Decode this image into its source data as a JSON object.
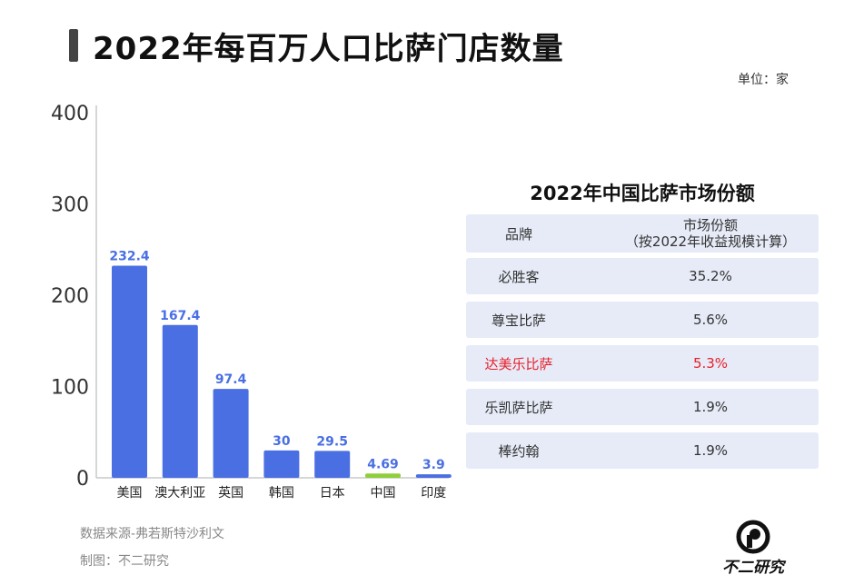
{
  "title": "2022年每百万人口比萨门店数量",
  "unit": "单位：家",
  "chart_data": {
    "type": "bar",
    "categories": [
      "美国",
      "澳大利亚",
      "英国",
      "韩国",
      "日本",
      "中国",
      "印度"
    ],
    "values": [
      232.4,
      167.4,
      97.4,
      30,
      29.5,
      4.69,
      3.9
    ],
    "value_labels": [
      "232.4",
      "167.4",
      "97.4",
      "30",
      "29.5",
      "4.69",
      "3.9"
    ],
    "highlight_category": "中国",
    "bar_color": "#4a6fe3",
    "highlight_color": "#8fcf3c",
    "label_color": "#4a6fe3",
    "ylim": [
      0,
      400
    ],
    "yticks": [
      0,
      100,
      200,
      300,
      400
    ],
    "grid": false
  },
  "table": {
    "title": "2022年中国比萨市场份额",
    "header": {
      "brand": "品牌",
      "share_line1": "市场份额",
      "share_line2": "（按2022年收益规模计算）"
    },
    "rows": [
      {
        "brand": "必胜客",
        "share": "35.2%",
        "highlight": false
      },
      {
        "brand": "尊宝比萨",
        "share": "5.6%",
        "highlight": false
      },
      {
        "brand": "达美乐比萨",
        "share": "5.3%",
        "highlight": true
      },
      {
        "brand": "乐凯萨比萨",
        "share": "1.9%",
        "highlight": false
      },
      {
        "brand": "棒约翰",
        "share": "1.9%",
        "highlight": false
      }
    ],
    "highlight_color": "#e8202a",
    "row_color": "#e6ebf7"
  },
  "footer": {
    "source": "数据来源-弗若斯特沙利文",
    "maker": "制图：不二研究"
  },
  "logo": {
    "text": "不二研究",
    "icon": "logo-circle-icon"
  }
}
